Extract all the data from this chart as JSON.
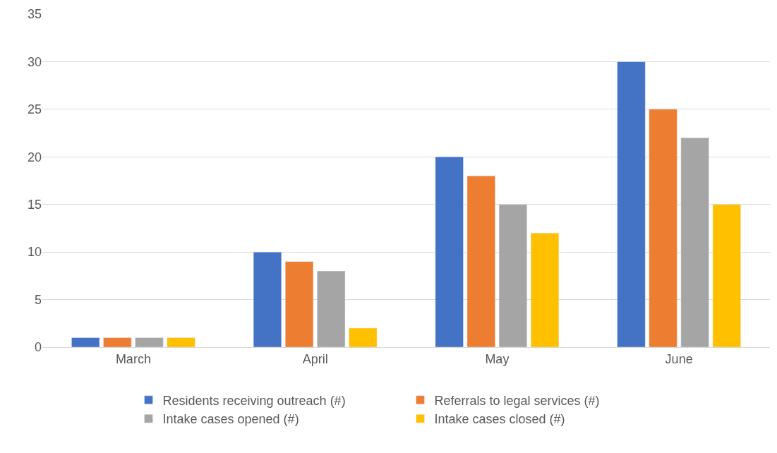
{
  "chart_data": {
    "type": "bar",
    "categories": [
      "March",
      "April",
      "May",
      "June"
    ],
    "series": [
      {
        "name": "Residents receiving outreach (#)",
        "color": "#4472c4",
        "values": [
          1,
          10,
          20,
          30
        ]
      },
      {
        "name": "Referrals to legal services (#)",
        "color": "#ed7d31",
        "values": [
          1,
          9,
          18,
          25
        ]
      },
      {
        "name": "Intake cases opened (#)",
        "color": "#a5a5a5",
        "values": [
          1,
          8,
          15,
          22
        ]
      },
      {
        "name": "Intake cases closed (#)",
        "color": "#ffc000",
        "values": [
          1,
          2,
          12,
          15
        ]
      }
    ],
    "ylim": [
      0,
      35
    ],
    "yticks": [
      0,
      5,
      10,
      15,
      20,
      25,
      30,
      35
    ],
    "grid": "y",
    "legend": "bottom"
  }
}
